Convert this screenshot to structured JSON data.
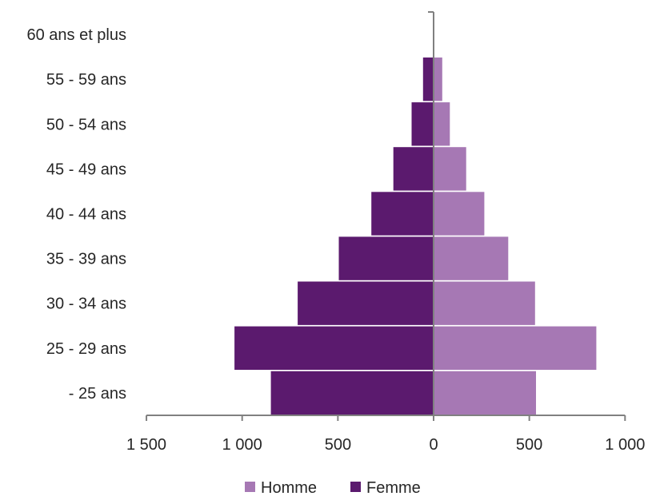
{
  "chart_data": {
    "type": "bar",
    "orientation": "horizontal-population-pyramid",
    "categories": [
      "- 25 ans",
      "25 - 29 ans",
      "30 - 34 ans",
      "35 - 39 ans",
      "40 - 44 ans",
      "45 - 49 ans",
      "50 - 54 ans",
      "55 - 59 ans",
      "60 ans et plus"
    ],
    "series": [
      {
        "name": "Homme",
        "color": "#a678b4",
        "side": "right",
        "values": [
          535,
          850,
          530,
          390,
          265,
          170,
          85,
          45,
          0
        ]
      },
      {
        "name": "Femme",
        "color": "#5b1a6e",
        "side": "left",
        "values": [
          850,
          1040,
          710,
          495,
          325,
          210,
          115,
          55,
          0
        ]
      }
    ],
    "xlim": [
      -1500,
      1000
    ],
    "ticks": [
      -1500,
      -1000,
      -500,
      0,
      500,
      1000
    ],
    "tick_labels": [
      "1 500",
      "1 000",
      "500",
      "0",
      "500",
      "1 000"
    ],
    "legend_position": "bottom",
    "grid": false,
    "title": "",
    "xlabel": "",
    "ylabel": ""
  }
}
